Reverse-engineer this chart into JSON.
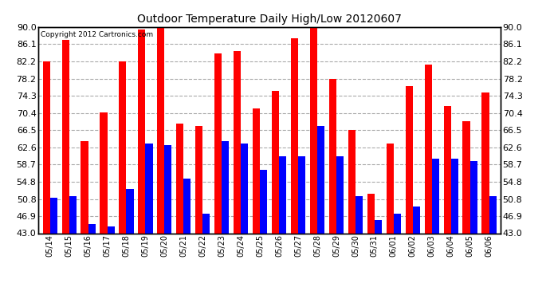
{
  "title": "Outdoor Temperature Daily High/Low 20120607",
  "copyright": "Copyright 2012 Cartronics.com",
  "dates": [
    "05/14",
    "05/15",
    "05/16",
    "05/17",
    "05/18",
    "05/19",
    "05/20",
    "05/21",
    "05/22",
    "05/23",
    "05/24",
    "05/25",
    "05/26",
    "05/27",
    "05/28",
    "05/29",
    "05/30",
    "05/31",
    "06/01",
    "06/02",
    "06/03",
    "06/04",
    "06/05",
    "06/06"
  ],
  "highs": [
    82.2,
    87.0,
    64.0,
    70.5,
    82.2,
    89.5,
    90.0,
    68.0,
    67.5,
    84.0,
    84.5,
    71.5,
    75.5,
    87.5,
    91.0,
    78.2,
    66.5,
    52.0,
    63.5,
    76.5,
    81.5,
    72.0,
    68.5,
    75.0
  ],
  "lows": [
    51.0,
    51.5,
    45.0,
    44.5,
    53.0,
    63.5,
    63.0,
    55.5,
    47.5,
    64.0,
    63.5,
    57.5,
    60.5,
    60.5,
    67.5,
    60.5,
    51.5,
    46.0,
    47.5,
    49.0,
    60.0,
    60.0,
    59.5,
    51.5
  ],
  "high_color": "#FF0000",
  "low_color": "#0000FF",
  "bg_color": "#FFFFFF",
  "grid_color": "#AAAAAA",
  "yticks": [
    43.0,
    46.9,
    50.8,
    54.8,
    58.7,
    62.6,
    66.5,
    70.4,
    74.3,
    78.2,
    82.2,
    86.1,
    90.0
  ],
  "ymin": 43.0,
  "ymax": 90.0,
  "bar_width": 0.38
}
